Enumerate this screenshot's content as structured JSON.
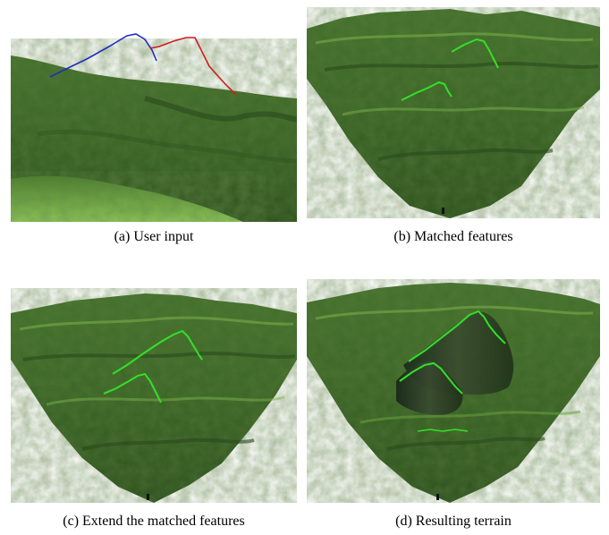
{
  "figure": {
    "panels": [
      {
        "id": "a",
        "caption": "(a) User input"
      },
      {
        "id": "b",
        "caption": "(b) Matched features"
      },
      {
        "id": "c",
        "caption": "(c) Extend the matched features"
      },
      {
        "id": "d",
        "caption": "(d) Resulting terrain"
      }
    ],
    "colors": {
      "terrain_light": "#5f9a38",
      "terrain_dark": "#1f3d16",
      "sketch_user_a": "#1f2fc0",
      "sketch_user_b": "#d01c1c",
      "sketch_feature": "#33e02a",
      "background": "#ffffff"
    }
  }
}
